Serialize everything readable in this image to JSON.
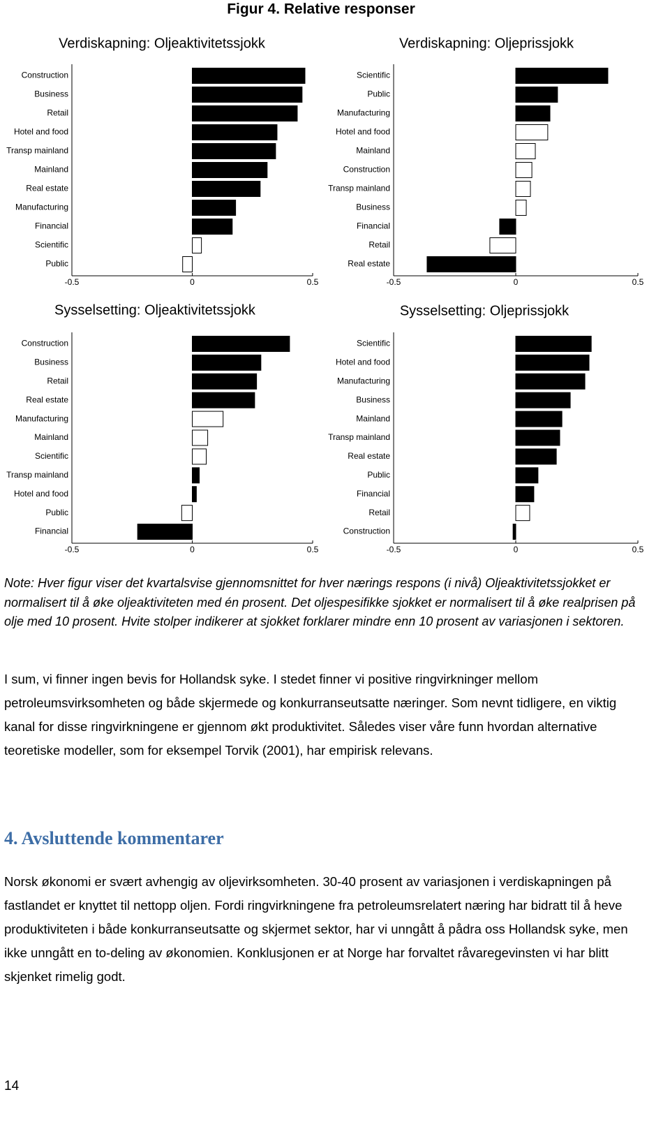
{
  "figure_title": "Figur 4. Relative responser",
  "chart_data": [
    {
      "type": "bar",
      "orientation": "horizontal",
      "title": "Verdiskapning: Oljeaktivitetssjokk",
      "categories": [
        "Construction",
        "Business",
        "Retail",
        "Hotel and food",
        "Transp mainland",
        "Mainland",
        "Real estate",
        "Manufacturing",
        "Financial",
        "Scientific",
        "Public"
      ],
      "values": [
        0.468,
        0.456,
        0.436,
        0.352,
        0.346,
        0.311,
        0.282,
        0.18,
        0.166,
        0.038,
        -0.04
      ],
      "colors": [
        "#000000",
        "#000000",
        "#000000",
        "#000000",
        "#000000",
        "#000000",
        "#000000",
        "#000000",
        "#000000",
        "#ffffff",
        "#ffffff"
      ],
      "xlim": [
        -0.5,
        0.5
      ],
      "xticks": [
        -0.5,
        0,
        0.5
      ]
    },
    {
      "type": "bar",
      "orientation": "horizontal",
      "title": "Verdiskapning: Oljeprissjokk",
      "categories": [
        "Scientific",
        "Public",
        "Manufacturing",
        "Hotel and food",
        "Mainland",
        "Construction",
        "Transp mainland",
        "Business",
        "Financial",
        "Retail",
        "Real estate"
      ],
      "values": [
        0.377,
        0.171,
        0.14,
        0.131,
        0.08,
        0.066,
        0.06,
        0.043,
        -0.066,
        -0.106,
        -0.363
      ],
      "colors": [
        "#000000",
        "#000000",
        "#000000",
        "#ffffff",
        "#ffffff",
        "#ffffff",
        "#ffffff",
        "#ffffff",
        "#000000",
        "#ffffff",
        "#000000"
      ],
      "xlim": [
        -0.5,
        0.5
      ],
      "xticks": [
        -0.5,
        0,
        0.5
      ]
    },
    {
      "type": "bar",
      "orientation": "horizontal",
      "title": "Sysselsetting: Oljeaktivitetssjokk",
      "categories": [
        "Construction",
        "Business",
        "Retail",
        "Real estate",
        "Manufacturing",
        "Mainland",
        "Scientific",
        "Transp mainland",
        "Hotel and food",
        "Public",
        "Financial"
      ],
      "values": [
        0.404,
        0.285,
        0.267,
        0.259,
        0.128,
        0.064,
        0.058,
        0.029,
        0.017,
        -0.044,
        -0.227
      ],
      "colors": [
        "#000000",
        "#000000",
        "#000000",
        "#000000",
        "#ffffff",
        "#ffffff",
        "#ffffff",
        "#000000",
        "#000000",
        "#ffffff",
        "#000000"
      ],
      "xlim": [
        -0.5,
        0.5
      ],
      "xticks": [
        -0.5,
        0,
        0.5
      ]
    },
    {
      "type": "bar",
      "orientation": "horizontal",
      "title": "Sysselsetting: Oljeprissjokk",
      "categories": [
        "Scientific",
        "Hotel and food",
        "Manufacturing",
        "Business",
        "Mainland",
        "Transp mainland",
        "Real estate",
        "Public",
        "Financial",
        "Retail",
        "Construction"
      ],
      "values": [
        0.309,
        0.3,
        0.283,
        0.223,
        0.189,
        0.18,
        0.166,
        0.091,
        0.074,
        0.057,
        -0.011
      ],
      "colors": [
        "#000000",
        "#000000",
        "#000000",
        "#000000",
        "#000000",
        "#000000",
        "#000000",
        "#000000",
        "#000000",
        "#ffffff",
        "#000000"
      ],
      "xlim": [
        -0.5,
        0.5
      ],
      "xticks": [
        -0.5,
        0,
        0.5
      ]
    }
  ],
  "note": "Note: Hver figur viser det kvartalsvise gjennomsnittet for hver nærings respons (i nivå) Oljeaktivitetssjokket er normalisert til å øke oljeaktiviteten med én prosent. Det oljespesifikke sjokket er normalisert til å øke realprisen på olje med 10 prosent. Hvite stolper indikerer at sjokket forklarer mindre enn 10 prosent av variasjonen i sektoren.",
  "paragraph_1": "I sum, vi finner ingen bevis for Hollandsk syke. I stedet finner vi positive ringvirkninger mellom petroleumsvirksomheten og både skjermede og konkurranseutsatte næringer. Som nevnt tidligere, en viktig kanal for disse ringvirkningene er gjennom økt produktivitet. Således viser våre funn hvordan alternative teoretiske modeller, som for eksempel Torvik (2001), har empirisk relevans.",
  "heading": "4. Avsluttende kommentarer",
  "paragraph_2": "Norsk økonomi er svært avhengig av oljevirksomheten.  30-40 prosent av variasjonen i verdiskapningen på fastlandet er knyttet til nettopp oljen. Fordi ringvirkningene fra petroleumsrelatert næring har bidratt til å heve produktiviteten i både konkurranseutsatte og skjermet sektor, har vi unngått å pådra oss Hollandsk syke, men ikke unngått en to-deling av økonomien. Konklusjonen er at Norge har forvaltet råvaregevinsten vi har blitt skjenket rimelig godt.",
  "page_number": "14"
}
